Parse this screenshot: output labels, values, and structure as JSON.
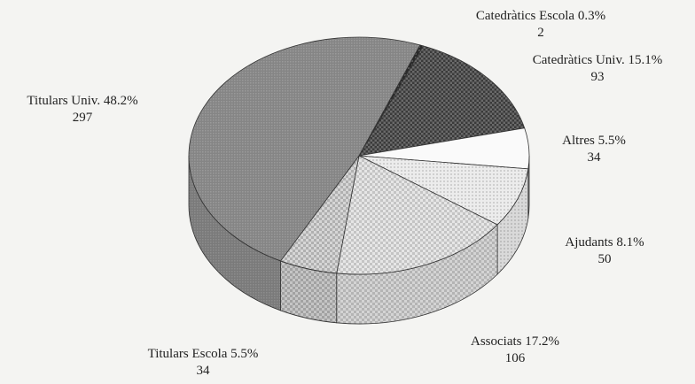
{
  "chart_data": {
    "type": "pie",
    "title": "",
    "slices": [
      {
        "label": "Catedràtics Escola",
        "percent": "0.3%",
        "value": 2,
        "fill": "#2d2d2d",
        "pattern": "dark-dots"
      },
      {
        "label": "Catedràtics Univ.",
        "percent": "15.1%",
        "value": 93,
        "fill": "#4a4a4a",
        "pattern": "checker-dark"
      },
      {
        "label": "Altres",
        "percent": "5.5%",
        "value": 34,
        "fill": "#fafafa",
        "pattern": "none"
      },
      {
        "label": "Ajudants",
        "percent": "8.1%",
        "value": 50,
        "fill": "#e2e2e2",
        "pattern": "light-dots"
      },
      {
        "label": "Associats",
        "percent": "17.2%",
        "value": 106,
        "fill": "#d2d2d2",
        "pattern": "checker-light"
      },
      {
        "label": "Titulars Escola",
        "percent": "5.5%",
        "value": 34,
        "fill": "#c2c2c2",
        "pattern": "checker-mid"
      },
      {
        "label": "Titulars Univ.",
        "percent": "48.2%",
        "value": 297,
        "fill": "#8a8a8a",
        "pattern": "grey"
      }
    ],
    "style": "3d"
  }
}
